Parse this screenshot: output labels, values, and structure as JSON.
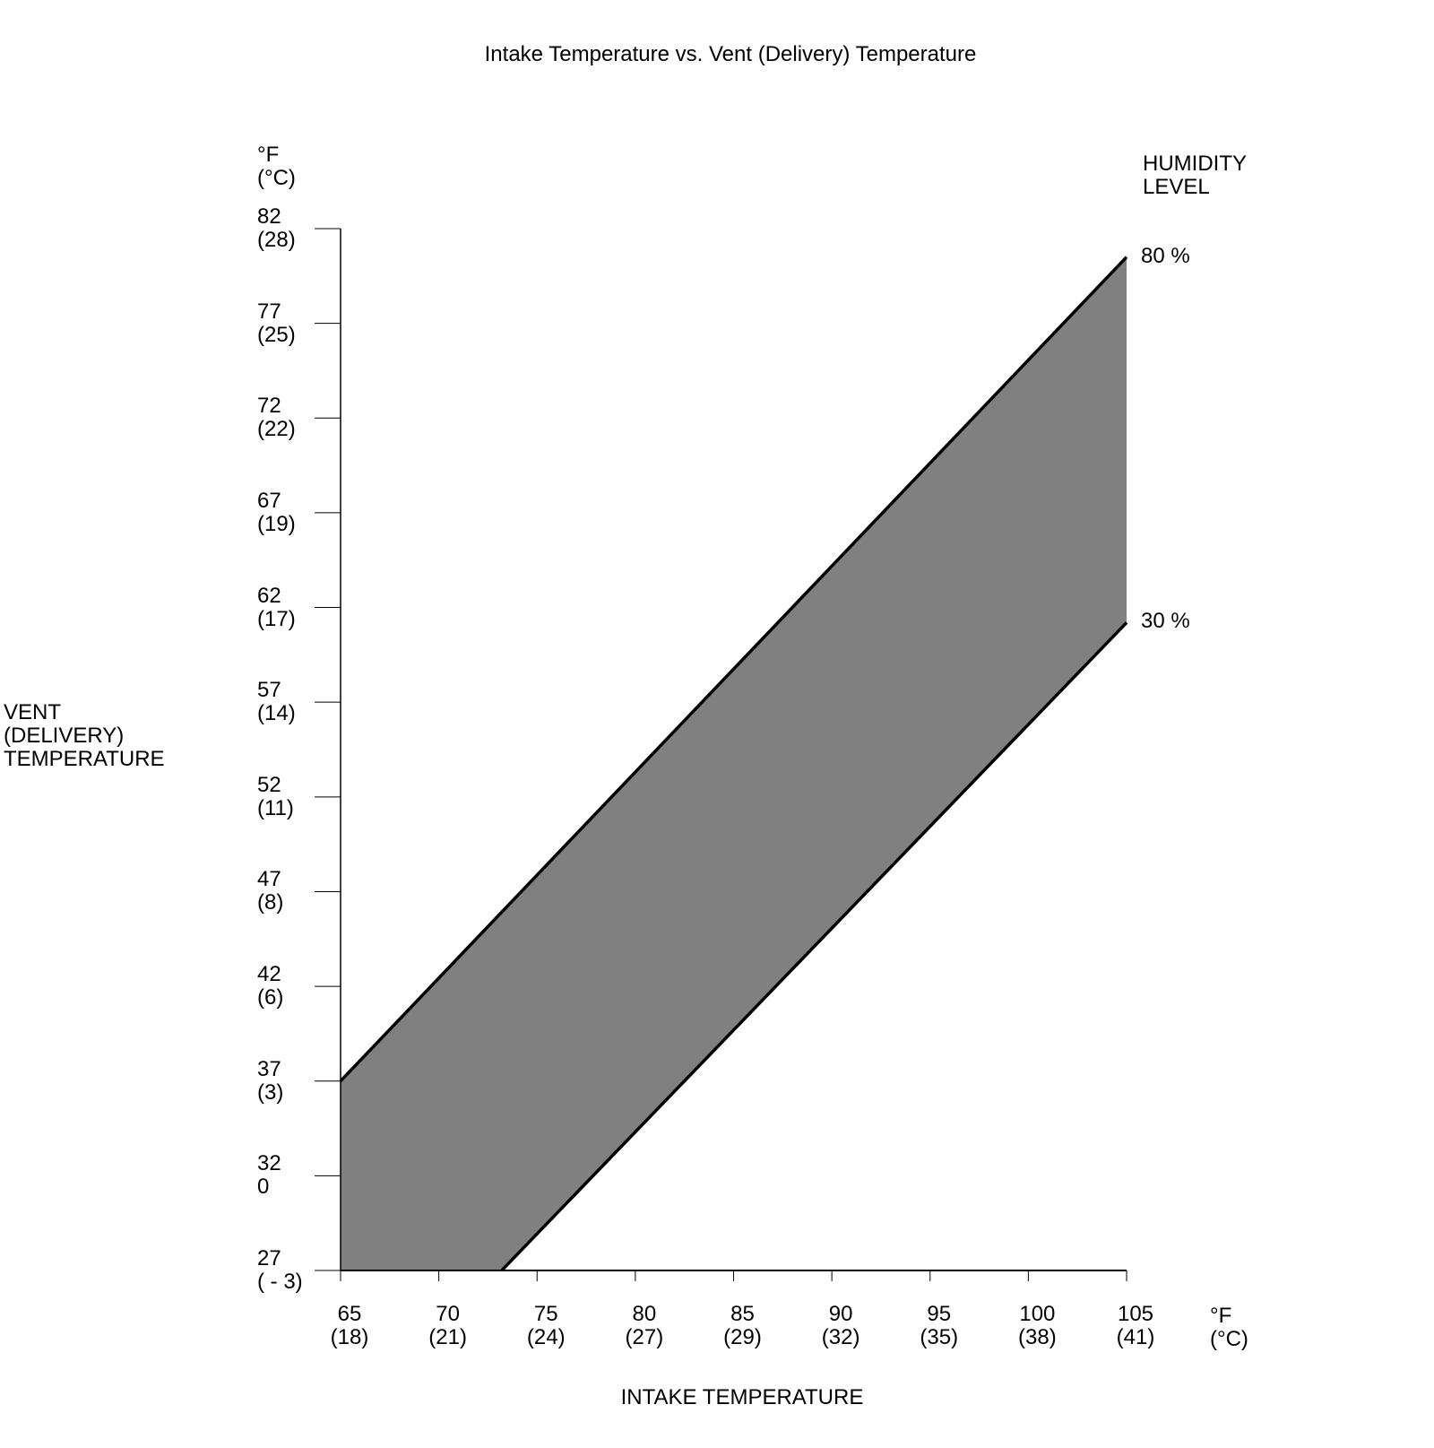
{
  "chart_data": {
    "type": "band",
    "title": "Intake Temperature vs. Vent (Delivery) Temperature",
    "x_label": "INTAKE TEMPERATURE",
    "y_label": "VENT\n(DELIVERY)\nTEMPERATURE",
    "x_unit": "°F\n(°C)",
    "y_unit": "°F\n(°C)",
    "legend_title": "HUMIDITY\nLEVEL",
    "fill_color": "#808080",
    "xlim": [
      65,
      105
    ],
    "ylim": [
      27,
      82
    ],
    "xticks": [
      {
        "value": 65,
        "label": "65\n(18)"
      },
      {
        "value": 70,
        "label": "70\n(21)"
      },
      {
        "value": 75,
        "label": "75\n(24)"
      },
      {
        "value": 80,
        "label": "80\n(27)"
      },
      {
        "value": 85,
        "label": "85\n(29)"
      },
      {
        "value": 90,
        "label": "90\n(32)"
      },
      {
        "value": 95,
        "label": "95\n(35)"
      },
      {
        "value": 100,
        "label": "100\n(38)"
      },
      {
        "value": 105,
        "label": "105\n(41)"
      }
    ],
    "yticks": [
      {
        "value": 27,
        "label": "27\n( - 3)"
      },
      {
        "value": 32,
        "label": "32\n0"
      },
      {
        "value": 37,
        "label": "37\n(3)"
      },
      {
        "value": 42,
        "label": "42\n(6)"
      },
      {
        "value": 47,
        "label": "47\n(8)"
      },
      {
        "value": 52,
        "label": "52\n(11)"
      },
      {
        "value": 57,
        "label": "57\n(14)"
      },
      {
        "value": 62,
        "label": "62\n(17)"
      },
      {
        "value": 67,
        "label": "67\n(19)"
      },
      {
        "value": 72,
        "label": "72\n(22)"
      },
      {
        "value": 77,
        "label": "77\n(25)"
      },
      {
        "value": 82,
        "label": "82\n(28)"
      }
    ],
    "series": [
      {
        "name": "80 %",
        "color": "#000000",
        "x": [
          65,
          105
        ],
        "values": [
          37,
          80.5
        ]
      },
      {
        "name": "30 %",
        "color": "#000000",
        "x": [
          73.2,
          105
        ],
        "values": [
          27,
          61.2
        ]
      }
    ]
  }
}
